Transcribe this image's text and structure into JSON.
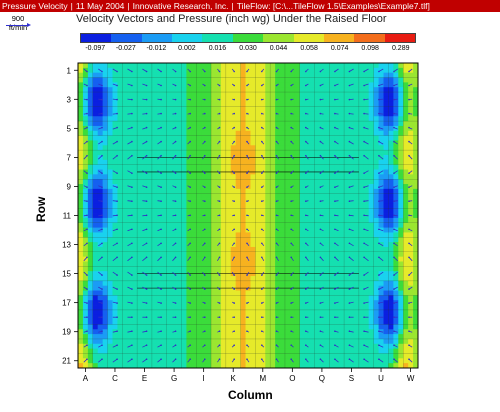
{
  "titlebar": {
    "segments": [
      "Pressure Velocity",
      "11 May 2004",
      "Innovative Research, Inc.",
      "TileFlow: [C:\\...TileFlow 1.5\\Examples\\Example7.tlf]"
    ]
  },
  "scale": {
    "label": "900 ft/min"
  },
  "chart_data": {
    "type": "heatmap",
    "title": "Velocity Vectors and Pressure (inch wg) Under the Raised Floor",
    "xlabel": "Column",
    "ylabel": "Row",
    "colorbar": {
      "labels": [
        "-0.097",
        "-0.027",
        "-0.012",
        "0.002",
        "0.016",
        "0.030",
        "0.044",
        "0.058",
        "0.074",
        "0.098",
        "0.289"
      ],
      "colors": [
        "#0b1fe0",
        "#1560f0",
        "#1b9cf5",
        "#19d2ee",
        "#15e0b0",
        "#3bdc3b",
        "#9be630",
        "#e6ea2a",
        "#f7b21f",
        "#f36d1c",
        "#e81c12"
      ]
    },
    "row_ticks": [
      "1",
      "3",
      "5",
      "7",
      "9",
      "11",
      "13",
      "15",
      "17",
      "19",
      "21"
    ],
    "column_ticks": [
      "A",
      "C",
      "E",
      "G",
      "I",
      "K",
      "M",
      "O",
      "Q",
      "S",
      "U",
      "W"
    ]
  }
}
